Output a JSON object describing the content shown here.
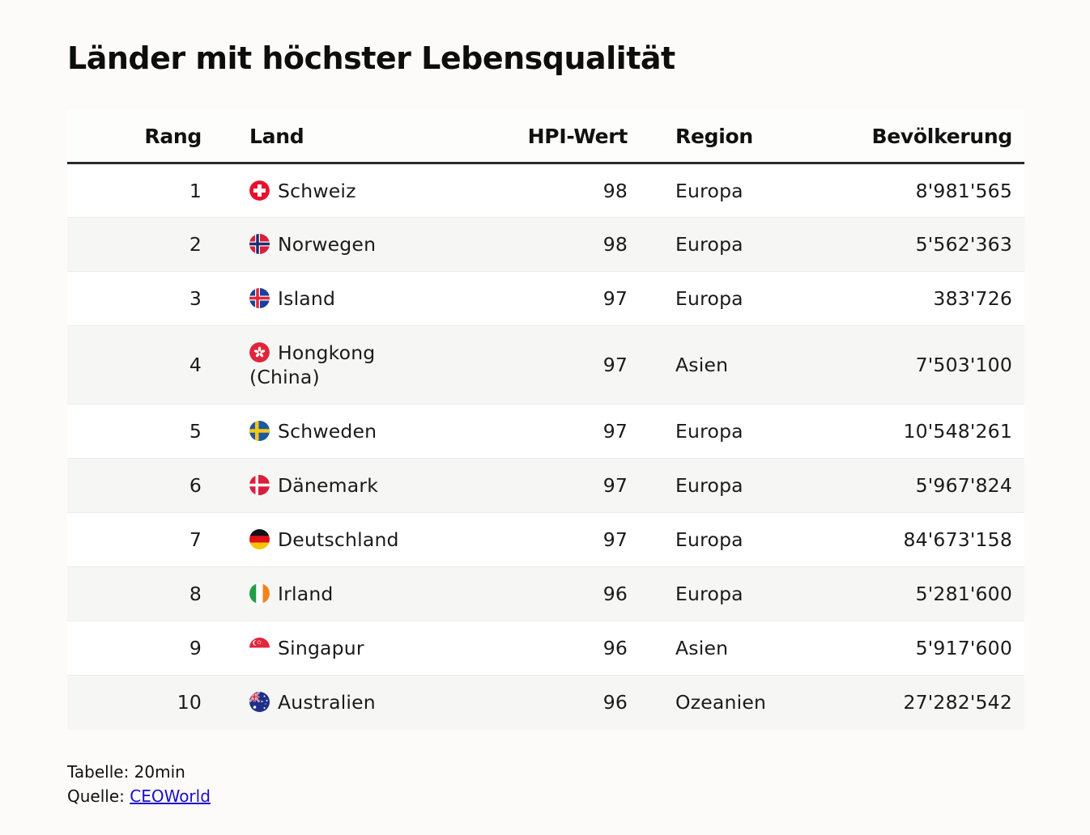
{
  "title": "Länder mit höchster Lebensqualität",
  "columns": {
    "rank": "Rang",
    "land": "Land",
    "hpi": "HPI-Wert",
    "region": "Region",
    "population": "Bevölkerung"
  },
  "rows": [
    {
      "rank": "1",
      "land": "Schweiz",
      "flag_icon": "switzerland-flag-icon",
      "hpi": "98",
      "region": "Europa",
      "population": "8'981'565"
    },
    {
      "rank": "2",
      "land": "Norwegen",
      "flag_icon": "norway-flag-icon",
      "hpi": "98",
      "region": "Europa",
      "population": "5'562'363"
    },
    {
      "rank": "3",
      "land": "Island",
      "flag_icon": "iceland-flag-icon",
      "hpi": "97",
      "region": "Europa",
      "population": "383'726"
    },
    {
      "rank": "4",
      "land": "Hongkong (China)",
      "flag_icon": "hong-kong-flag-icon",
      "hpi": "97",
      "region": "Asien",
      "population": "7'503'100"
    },
    {
      "rank": "5",
      "land": "Schweden",
      "flag_icon": "sweden-flag-icon",
      "hpi": "97",
      "region": "Europa",
      "population": "10'548'261"
    },
    {
      "rank": "6",
      "land": "Dänemark",
      "flag_icon": "denmark-flag-icon",
      "hpi": "97",
      "region": "Europa",
      "population": "5'967'824"
    },
    {
      "rank": "7",
      "land": "Deutschland",
      "flag_icon": "germany-flag-icon",
      "hpi": "97",
      "region": "Europa",
      "population": "84'673'158"
    },
    {
      "rank": "8",
      "land": "Irland",
      "flag_icon": "ireland-flag-icon",
      "hpi": "96",
      "region": "Europa",
      "population": "5'281'600"
    },
    {
      "rank": "9",
      "land": "Singapur",
      "flag_icon": "singapore-flag-icon",
      "hpi": "96",
      "region": "Asien",
      "population": "5'917'600"
    },
    {
      "rank": "10",
      "land": "Australien",
      "flag_icon": "australia-flag-icon",
      "hpi": "96",
      "region": "Ozeanien",
      "population": "27'282'542"
    }
  ],
  "footer": {
    "table_label": "Tabelle: 20min",
    "source_label": "Quelle: ",
    "source_link": "CEOWorld"
  },
  "colors": {
    "background": "#fcfbf9",
    "header_rule": "#2b2b2b",
    "row_alt": "#f6f6f5",
    "link": "#1a0dcc"
  }
}
